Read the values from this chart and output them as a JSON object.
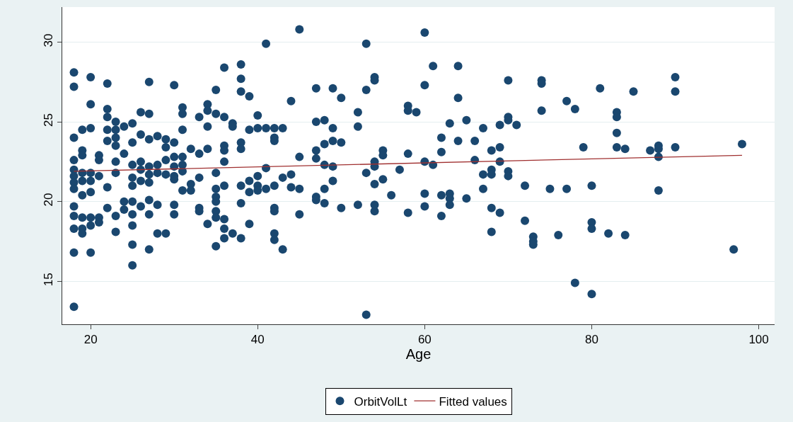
{
  "chart_data": {
    "type": "scatter",
    "xlabel": "Age",
    "xlim": [
      16.6,
      101.9
    ],
    "ylim": [
      12.3,
      32.2
    ],
    "xticks": [
      20,
      40,
      60,
      80,
      100
    ],
    "yticks": [
      15,
      20,
      25,
      30
    ],
    "grid": "y",
    "legend": "bottom",
    "marker": "circle",
    "series": [
      {
        "name": "OrbitVolLt",
        "color": "#1a476f",
        "x": [
          18,
          18,
          18,
          18,
          18,
          18,
          18,
          18,
          18,
          18,
          18,
          18,
          18,
          19,
          19,
          19,
          19,
          19,
          19,
          19,
          19,
          19,
          20,
          20,
          20,
          20,
          20,
          20,
          20,
          20,
          20,
          21,
          21,
          21,
          21,
          21,
          22,
          22,
          22,
          22,
          22,
          22,
          22,
          23,
          23,
          23,
          23,
          23,
          23,
          23,
          23,
          24,
          24,
          24,
          24,
          25,
          25,
          25,
          25,
          25,
          25,
          25,
          25,
          25,
          25,
          26,
          26,
          26,
          26,
          26,
          26,
          27,
          27,
          27,
          27,
          27,
          27,
          27,
          27,
          27,
          28,
          28,
          28,
          28,
          28,
          29,
          29,
          29,
          29,
          29,
          30,
          30,
          30,
          30,
          30,
          30,
          30,
          30,
          31,
          31,
          31,
          31,
          31,
          31,
          31,
          32,
          32,
          32,
          33,
          33,
          33,
          33,
          33,
          34,
          34,
          34,
          34,
          34,
          35,
          35,
          35,
          35,
          35,
          35,
          35,
          35,
          35,
          36,
          36,
          36,
          36,
          36,
          36,
          36,
          36,
          36,
          37,
          37,
          37,
          38,
          38,
          38,
          38,
          38,
          38,
          38,
          38,
          39,
          39,
          39,
          39,
          39,
          40,
          40,
          40,
          40,
          40,
          41,
          41,
          41,
          41,
          42,
          42,
          42,
          42,
          42,
          42,
          42,
          42,
          43,
          43,
          43,
          44,
          44,
          44,
          45,
          45,
          45,
          45,
          47,
          47,
          47,
          47,
          47,
          47,
          48,
          48,
          48,
          48,
          48,
          49,
          49,
          49,
          49,
          49,
          50,
          50,
          50,
          52,
          52,
          52,
          53,
          53,
          53,
          53,
          54,
          54,
          54,
          54,
          54,
          54,
          54,
          55,
          55,
          55,
          56,
          57,
          58,
          58,
          58,
          58,
          59,
          60,
          60,
          60,
          60,
          60,
          61,
          61,
          62,
          62,
          62,
          62,
          63,
          63,
          63,
          63,
          64,
          64,
          64,
          65,
          65,
          66,
          66,
          67,
          67,
          67,
          68,
          68,
          68,
          68,
          68,
          69,
          69,
          69,
          69,
          70,
          70,
          70,
          70,
          70,
          71,
          72,
          72,
          73,
          73,
          73,
          74,
          74,
          74,
          75,
          76,
          77,
          77,
          78,
          78,
          79,
          80,
          80,
          80,
          80,
          81,
          82,
          83,
          83,
          83,
          83,
          84,
          84,
          85,
          87,
          88,
          88,
          88,
          88,
          90,
          90,
          90,
          97,
          98
        ],
        "values": [
          28.1,
          27.2,
          24.0,
          22.6,
          22.0,
          21.6,
          21.2,
          20.8,
          19.7,
          19.1,
          18.3,
          16.8,
          13.4,
          24.5,
          23.2,
          22.9,
          21.8,
          21.3,
          20.4,
          19.0,
          18.3,
          18.0,
          27.8,
          26.1,
          24.6,
          21.8,
          21.3,
          20.6,
          19.0,
          18.5,
          16.8,
          22.9,
          22.6,
          21.6,
          19.0,
          18.7,
          27.4,
          25.8,
          25.3,
          24.5,
          23.8,
          20.9,
          19.6,
          25.0,
          24.5,
          24.0,
          23.5,
          22.5,
          21.8,
          19.1,
          18.1,
          24.7,
          23.0,
          20.0,
          19.5,
          24.9,
          23.7,
          22.3,
          21.5,
          21.0,
          20.0,
          19.2,
          18.5,
          17.3,
          16.0,
          25.6,
          24.2,
          22.5,
          22.0,
          21.3,
          19.7,
          27.5,
          25.5,
          23.9,
          22.2,
          21.7,
          21.2,
          20.1,
          19.2,
          17.0,
          24.1,
          22.3,
          21.8,
          19.8,
          18.0,
          23.9,
          23.4,
          22.6,
          21.7,
          18.0,
          27.3,
          23.7,
          22.8,
          22.2,
          21.6,
          21.4,
          19.8,
          19.2,
          25.9,
          25.5,
          24.5,
          22.8,
          22.3,
          21.9,
          20.7,
          23.3,
          21.1,
          20.7,
          25.3,
          23.0,
          21.5,
          19.6,
          19.4,
          26.1,
          25.7,
          24.7,
          23.3,
          18.6,
          27.0,
          25.5,
          21.8,
          20.8,
          20.3,
          20.0,
          19.4,
          19.0,
          17.2,
          28.4,
          25.3,
          23.5,
          23.2,
          22.5,
          21.0,
          18.9,
          18.3,
          17.7,
          24.9,
          24.7,
          18.0,
          28.6,
          27.7,
          26.9,
          23.7,
          23.3,
          21.0,
          19.9,
          17.7,
          26.6,
          24.5,
          21.3,
          20.6,
          18.6,
          25.4,
          24.6,
          21.6,
          21.0,
          20.7,
          29.9,
          24.6,
          22.1,
          20.8,
          24.6,
          24.0,
          23.8,
          21.0,
          19.6,
          19.4,
          18.0,
          17.6,
          24.6,
          21.5,
          17.0,
          26.3,
          21.7,
          20.9,
          30.8,
          22.8,
          20.8,
          19.2,
          27.1,
          25.0,
          23.2,
          22.7,
          20.3,
          20.1,
          25.1,
          23.6,
          22.3,
          20.8,
          19.9,
          27.1,
          24.6,
          23.8,
          22.2,
          21.3,
          26.5,
          23.7,
          19.6,
          25.6,
          24.7,
          19.8,
          29.9,
          27.0,
          21.8,
          12.9,
          27.8,
          27.6,
          22.5,
          22.2,
          21.1,
          19.8,
          19.4,
          23.2,
          22.9,
          21.4,
          20.4,
          22.0,
          26.0,
          25.7,
          23.0,
          19.3,
          25.6,
          30.6,
          27.3,
          22.5,
          20.5,
          19.7,
          28.5,
          22.3,
          24.0,
          23.1,
          20.4,
          19.1,
          24.9,
          20.5,
          20.2,
          19.8,
          28.5,
          26.5,
          23.8,
          25.1,
          20.2,
          23.8,
          22.6,
          24.6,
          21.7,
          20.8,
          23.2,
          22.0,
          21.7,
          19.6,
          18.1,
          24.8,
          23.4,
          22.5,
          19.3,
          27.6,
          25.3,
          25.1,
          21.9,
          21.6,
          24.8,
          21.0,
          18.8,
          17.8,
          17.5,
          17.3,
          27.6,
          27.4,
          25.7,
          20.8,
          17.9,
          26.3,
          20.8,
          25.8,
          14.9,
          23.4,
          21.0,
          18.7,
          18.3,
          14.2,
          27.1,
          18.0,
          25.6,
          25.3,
          24.3,
          23.4,
          23.3,
          17.9,
          26.9,
          23.2,
          23.5,
          23.3,
          22.8,
          20.7,
          27.8,
          26.9,
          23.4,
          17.0,
          23.6
        ]
      },
      {
        "name": "Fitted values",
        "type": "line",
        "color": "#a03030",
        "marker": "none",
        "line_style": "solid",
        "x": [
          18,
          98
        ],
        "values": [
          21.9,
          22.9
        ]
      }
    ]
  }
}
